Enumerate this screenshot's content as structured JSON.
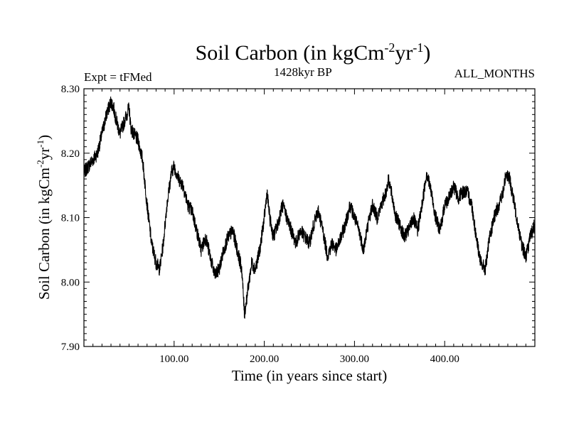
{
  "chart_data": {
    "type": "line",
    "title": {
      "main": "Soil Carbon (in kgCm",
      "exp1": "-2",
      "mid": "yr",
      "exp2": "-1",
      "end": ")"
    },
    "subtitle_left": "Expt = tFMed",
    "subtitle_center": "1428kyr BP",
    "subtitle_right": "ALL_MONTHS",
    "xlabel": "Time (in years since start)",
    "ylabel": {
      "main": "Soil Carbon (in kgCm",
      "exp1": "-2",
      "mid": "yr",
      "exp2": "-1",
      "end": ")"
    },
    "xlim": [
      0,
      500
    ],
    "ylim": [
      7.9,
      8.3
    ],
    "x_ticks": [
      100,
      200,
      300,
      400
    ],
    "x_tick_labels": [
      "100.00",
      "200.00",
      "300.00",
      "400.00"
    ],
    "y_ticks": [
      7.9,
      8.0,
      8.1,
      8.2,
      8.3
    ],
    "y_tick_labels": [
      "7.90",
      "8.00",
      "8.10",
      "8.20",
      "8.30"
    ],
    "series": [
      {
        "name": "Soil Carbon",
        "color": "#000000",
        "x": [
          0,
          5,
          10,
          15,
          20,
          25,
          30,
          33,
          36,
          40,
          45,
          50,
          52,
          55,
          60,
          65,
          70,
          75,
          80,
          84,
          88,
          92,
          97,
          100,
          105,
          110,
          115,
          120,
          125,
          130,
          135,
          140,
          145,
          150,
          155,
          160,
          165,
          170,
          175,
          178,
          182,
          186,
          190,
          195,
          200,
          203,
          206,
          210,
          215,
          220,
          225,
          230,
          235,
          240,
          245,
          250,
          255,
          260,
          265,
          270,
          275,
          280,
          285,
          290,
          295,
          300,
          305,
          310,
          315,
          320,
          325,
          330,
          335,
          338,
          342,
          346,
          350,
          355,
          360,
          365,
          370,
          375,
          380,
          385,
          390,
          395,
          400,
          405,
          410,
          415,
          420,
          425,
          430,
          435,
          440,
          445,
          450,
          455,
          460,
          465,
          468,
          472,
          476,
          480,
          485,
          490,
          495,
          500
        ],
        "y": [
          8.17,
          8.18,
          8.19,
          8.2,
          8.23,
          8.26,
          8.28,
          8.27,
          8.25,
          8.23,
          8.25,
          8.27,
          8.24,
          8.23,
          8.22,
          8.19,
          8.12,
          8.06,
          8.03,
          8.02,
          8.06,
          8.12,
          8.17,
          8.18,
          8.16,
          8.15,
          8.12,
          8.11,
          8.08,
          8.05,
          8.07,
          8.04,
          8.01,
          8.02,
          8.05,
          8.07,
          8.08,
          8.05,
          8.02,
          7.95,
          7.99,
          8.03,
          8.02,
          8.05,
          8.1,
          8.14,
          8.1,
          8.07,
          8.09,
          8.12,
          8.1,
          8.08,
          8.06,
          8.08,
          8.07,
          8.06,
          8.09,
          8.11,
          8.08,
          8.04,
          8.06,
          8.05,
          8.07,
          8.09,
          8.12,
          8.1,
          8.08,
          8.05,
          8.09,
          8.12,
          8.1,
          8.12,
          8.14,
          8.16,
          8.13,
          8.1,
          8.09,
          8.07,
          8.08,
          8.1,
          8.08,
          8.12,
          8.17,
          8.14,
          8.1,
          8.08,
          8.12,
          8.13,
          8.15,
          8.13,
          8.14,
          8.14,
          8.12,
          8.07,
          8.03,
          8.02,
          8.07,
          8.1,
          8.12,
          8.14,
          8.17,
          8.16,
          8.13,
          8.1,
          8.06,
          8.04,
          8.07,
          8.09
        ]
      }
    ]
  }
}
